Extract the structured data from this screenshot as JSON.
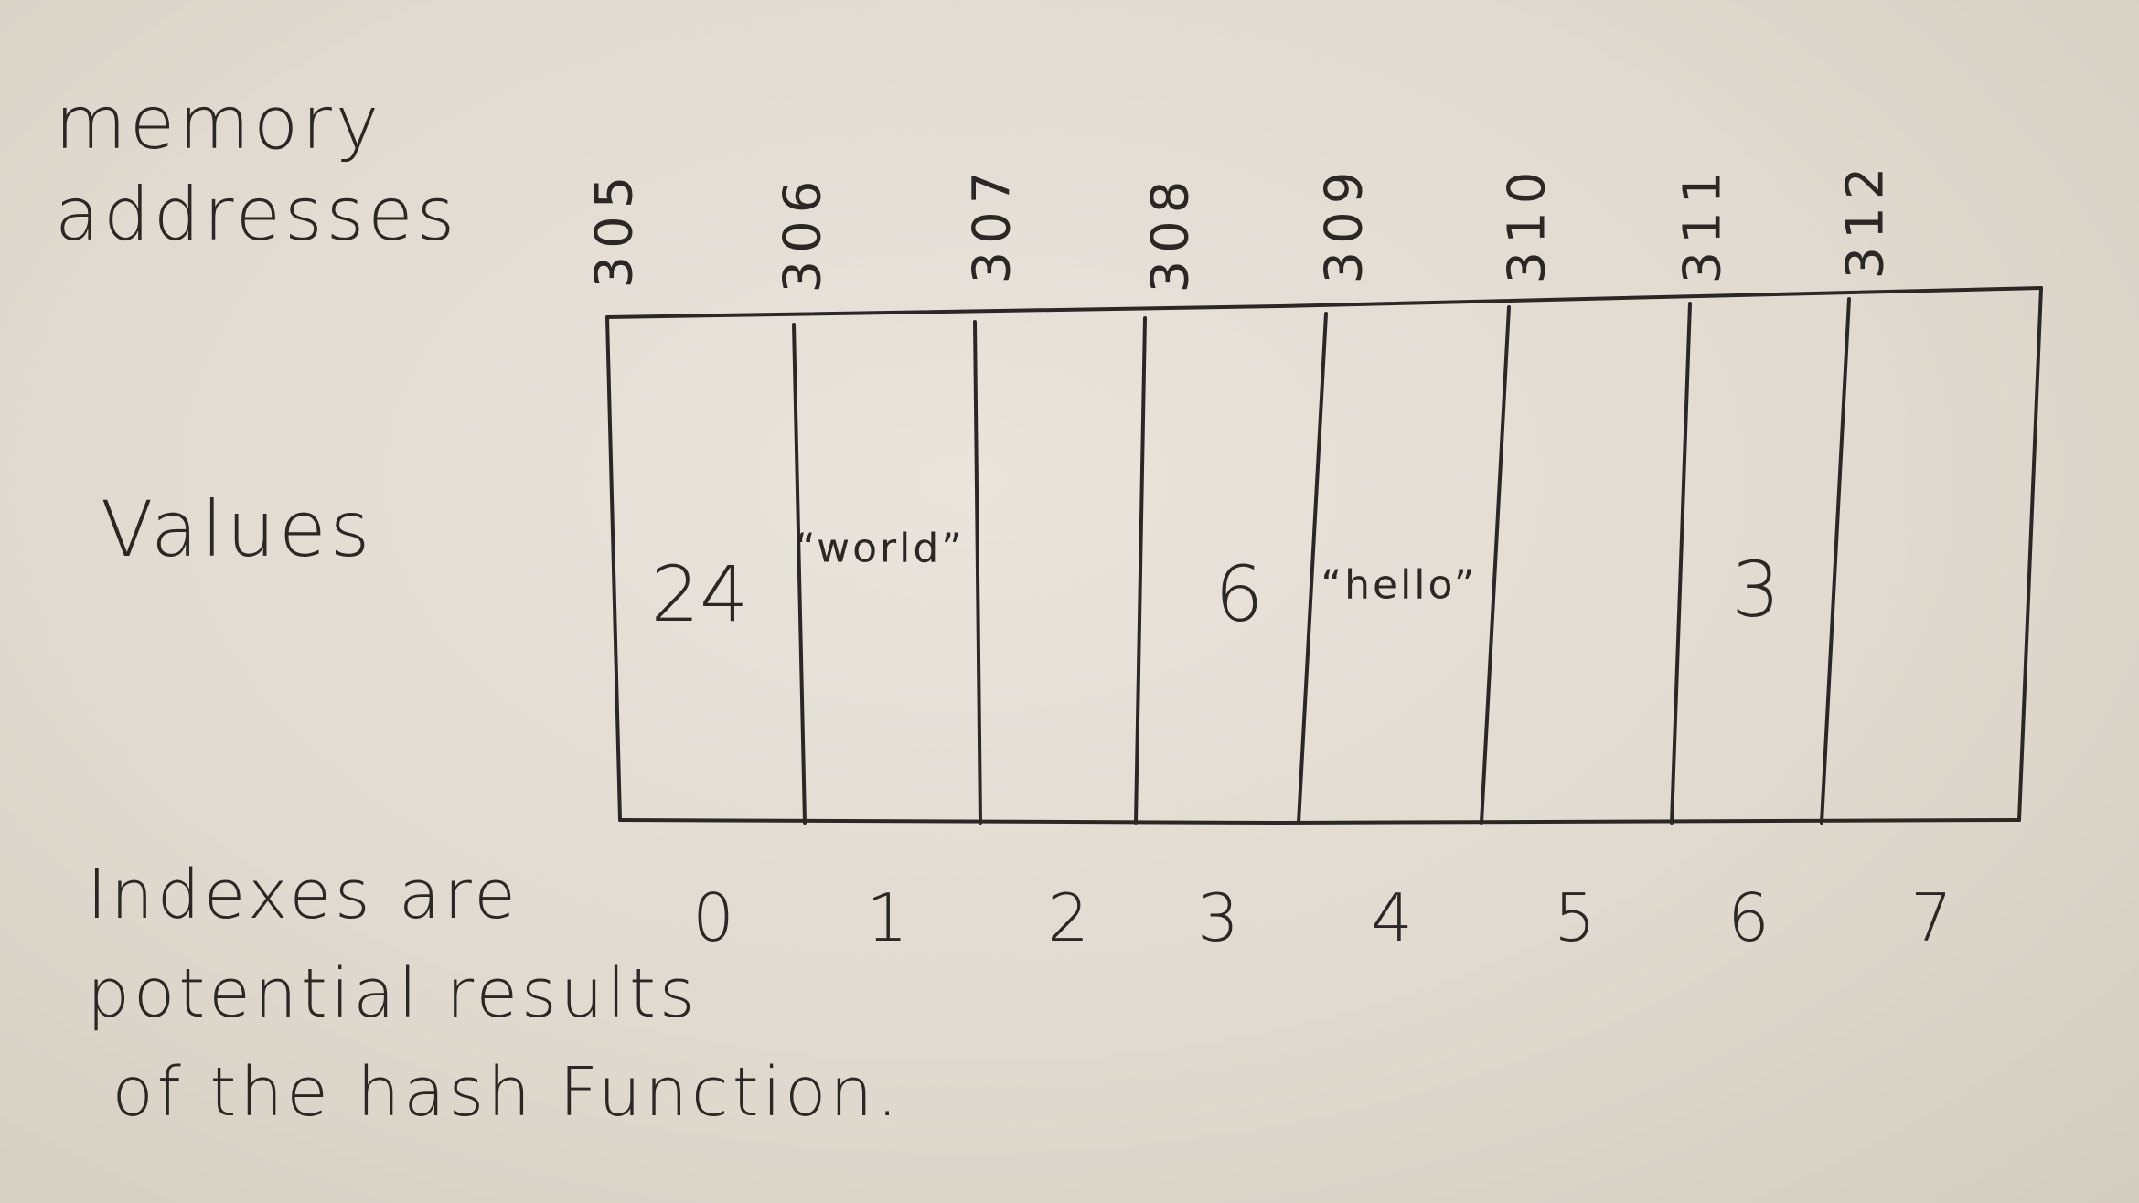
{
  "labels": {
    "memory_addresses": "memory\naddresses",
    "values": "Values",
    "indexes": "Indexes are\npotential results\n of the hash Function."
  },
  "cells": [
    {
      "address": "305",
      "value": "24",
      "index": "0"
    },
    {
      "address": "306",
      "value": "“world”",
      "index": "1"
    },
    {
      "address": "307",
      "value": "",
      "index": "2"
    },
    {
      "address": "308",
      "value": "6",
      "index": "3"
    },
    {
      "address": "309",
      "value": "“hello”",
      "index": "4"
    },
    {
      "address": "310",
      "value": "",
      "index": "5"
    },
    {
      "address": "311",
      "value": "3",
      "index": "6"
    },
    {
      "address": "312",
      "value": "",
      "index": "7"
    }
  ],
  "colors": {
    "paper": "#e4ded5",
    "ink": "#2b2724"
  }
}
